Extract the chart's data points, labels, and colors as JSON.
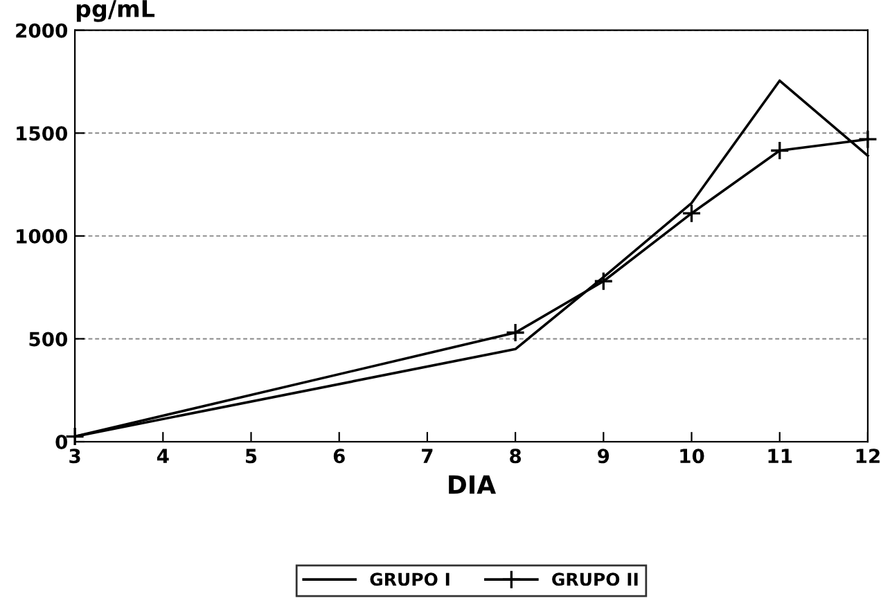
{
  "chart_data": {
    "type": "line",
    "ylabel": "pg/mL",
    "xlabel": "DIA",
    "x": [
      3,
      8,
      9,
      10,
      11,
      12
    ],
    "series": [
      {
        "name": "GRUPO I",
        "color": "#000000",
        "marker": "none",
        "values": [
          25,
          450,
          800,
          1160,
          1755,
          1390
        ]
      },
      {
        "name": "GRUPO II",
        "color": "#000000",
        "marker": "cross",
        "values": [
          25,
          530,
          780,
          1110,
          1415,
          1470
        ]
      }
    ],
    "xlim": [
      3,
      12
    ],
    "xticks": [
      3,
      4,
      5,
      6,
      7,
      8,
      9,
      10,
      11,
      12
    ],
    "ylim": [
      0,
      2000
    ],
    "yticks": [
      0,
      500,
      1000,
      1500,
      2000
    ],
    "grid": "y",
    "legend": "bottom",
    "line_style": "solid"
  }
}
